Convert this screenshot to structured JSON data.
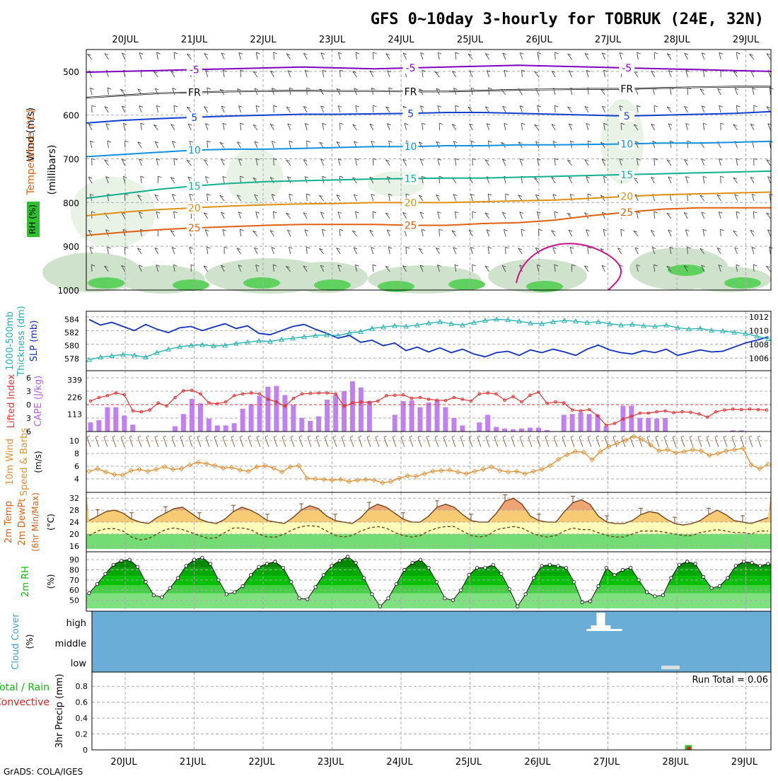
{
  "chart_data": {
    "type": "line",
    "title": "GFS 0~10day 3-hourly for TOBRUK (24E, 32N)",
    "credit": "GrADS: COLA/IGES",
    "x_dates": [
      "20JUL",
      "21JUL",
      "22JUL",
      "23JUL",
      "24JUL",
      "25JUL",
      "26JUL",
      "27JUL",
      "28JUL",
      "29JUL"
    ],
    "colors": {
      "temp": "#e06010",
      "rh_green": "#00c000",
      "slp": "#1030c0",
      "thick": "#20b0b0",
      "cape": "#c080f0",
      "li": "#e03030",
      "wind": "#e09030",
      "cloud": "#6aaed8"
    },
    "panels": [
      {
        "id": "upper_air",
        "ylabel_parts": [
          "RH (%)",
          "Temperature (°C)",
          "Wind (m/s)"
        ],
        "ylabel_colors": [
          "#000",
          "#e06010",
          "#000"
        ],
        "ylabel2": "(millibars)",
        "yticks": [
          500,
          600,
          700,
          800,
          900,
          1000
        ],
        "contours": [
          {
            "label": "-5",
            "color": "#8000c0",
            "values": [
              502,
              500,
              498,
              496,
              494,
              492,
              490,
              492,
              494,
              492,
              490,
              488,
              486,
              488,
              490,
              492,
              494,
              496,
              498,
              500
            ]
          },
          {
            "label": "FR",
            "color": "#000000",
            "values": [
              560,
              555,
              550,
              548,
              546,
              545,
              544,
              545,
              545,
              546,
              546,
              544,
              542,
              541,
              540,
              540,
              538,
              536,
              535,
              535
            ]
          },
          {
            "label": "5",
            "color": "#1040d0",
            "values": [
              618,
              612,
              608,
              605,
              602,
              600,
              598,
              598,
              597,
              596,
              594,
              594,
              596,
              598,
              600,
              602,
              600,
              598,
              596,
              592
            ]
          },
          {
            "label": "10",
            "color": "#1090e0",
            "values": [
              695,
              690,
              685,
              680,
              678,
              678,
              676,
              674,
              672,
              672,
              670,
              670,
              668,
              668,
              667,
              666,
              664,
              664,
              662,
              660
            ]
          },
          {
            "label": "15",
            "color": "#10b090",
            "values": [
              790,
              780,
              770,
              762,
              756,
              752,
              750,
              748,
              746,
              745,
              744,
              744,
              742,
              740,
              738,
              736,
              734,
              732,
              730,
              728
            ]
          },
          {
            "label": "20",
            "color": "#e09010",
            "values": [
              830,
              822,
              816,
              812,
              808,
              805,
              803,
              802,
              800,
              800,
              800,
              798,
              796,
              794,
              790,
              786,
              782,
              780,
              778,
              776
            ]
          },
          {
            "label": "25",
            "color": "#e06010",
            "values": [
              875,
              868,
              862,
              858,
              855,
              852,
              850,
              850,
              850,
              852,
              852,
              848,
              846,
              840,
              830,
              822,
              815,
              812,
              812,
              812
            ]
          }
        ]
      },
      {
        "id": "slp_thickness",
        "ylabel_left": "1000-500mb Thickness (dm)",
        "ylabel_right": "SLP (mb)",
        "thick_ticks": [
          578,
          580,
          582,
          584
        ],
        "slp_ticks": [
          1006,
          1008,
          1010,
          1012
        ],
        "slp": [
          1011.6,
          1010.8,
          1011.2,
          1010.6,
          1010.0,
          1010.9,
          1010.2,
          1009.7,
          1010.4,
          1010.6,
          1010.0,
          1010.5,
          1011.0,
          1010.3,
          1010.7,
          1009.6,
          1009.4,
          1010.0,
          1010.6,
          1010.9,
          1010.2,
          1009.6,
          1008.9,
          1009.3,
          1008.3,
          1008.6,
          1007.8,
          1008.2,
          1007.1,
          1007.6,
          1006.9,
          1007.5,
          1006.8,
          1007.3,
          1006.6,
          1006.2,
          1006.8,
          1007.0,
          1006.4,
          1007.2,
          1006.8,
          1007.3,
          1006.9,
          1006.4,
          1007.3,
          1007.9,
          1007.2,
          1006.8,
          1006.6,
          1007.1,
          1006.8,
          1007.3,
          1006.4,
          1006.8,
          1007.2,
          1006.9,
          1007.0,
          1007.6,
          1008.2,
          1008.6,
          1009.1
        ],
        "thickness": [
          577.8,
          578.2,
          578.4,
          578.6,
          578.5,
          578.2,
          578.9,
          579.4,
          579.8,
          580.0,
          580.1,
          579.9,
          580.0,
          580.3,
          580.5,
          580.7,
          580.6,
          580.9,
          581.1,
          581.3,
          581.5,
          581.6,
          581.5,
          581.9,
          582.1,
          582.6,
          582.8,
          583.0,
          582.9,
          583.1,
          583.4,
          583.6,
          583.3,
          583.1,
          583.5,
          583.8,
          584.0,
          583.9,
          583.7,
          583.4,
          583.3,
          583.6,
          583.8,
          583.7,
          583.5,
          583.6,
          583.3,
          583.1,
          583.2,
          583.0,
          582.9,
          583.1,
          582.7,
          582.5,
          582.6,
          582.3,
          582.2,
          582.0,
          581.8,
          581.4,
          581.0
        ]
      },
      {
        "id": "cape_li",
        "ylabel_left": "Lifted Index",
        "ylabel_right": "CAPE (J/kg)",
        "li_ticks": [
          -6,
          -3,
          0,
          3,
          6
        ],
        "cape_ticks": [
          113,
          226,
          339
        ],
        "cape": [
          60,
          75,
          160,
          160,
          105,
          45,
          0,
          0,
          0,
          0,
          35,
          115,
          215,
          185,
          85,
          40,
          40,
          55,
          150,
          180,
          235,
          295,
          300,
          240,
          175,
          90,
          70,
          100,
          210,
          240,
          265,
          330,
          290,
          200,
          0,
          0,
          110,
          200,
          205,
          160,
          190,
          205,
          160,
          90,
          40,
          0,
          60,
          110,
          30,
          20,
          15,
          20,
          25,
          25,
          10,
          0,
          110,
          115,
          125,
          115,
          110,
          35,
          0,
          170,
          170,
          90,
          90,
          85,
          90,
          0,
          0,
          0,
          0,
          0,
          0,
          0,
          8,
          8,
          0,
          0,
          0
        ],
        "li": [
          -0.8,
          -1.6,
          -2.0,
          -2.6,
          -2.2,
          1.4,
          1.6,
          1.2,
          -0.4,
          0.3,
          -1.6,
          -3.1,
          -3.2,
          -2.4,
          -0.4,
          -0.2,
          -0.6,
          -2.0,
          -2.4,
          -2.6,
          -2.4,
          -1.2,
          -0.6,
          0.4,
          -1.4,
          -2.4,
          -2.5,
          -2.6,
          -2.6,
          -2.4,
          0.4,
          -0.4,
          -0.6,
          -0.5,
          -0.8,
          -2.0,
          -2.1,
          -2.2,
          -1.4,
          -1.6,
          -1.2,
          -1.0,
          -0.9,
          -1.6,
          -1.2,
          -0.8,
          -2.4,
          -2.6,
          -2.4,
          -1.0,
          -1.8,
          -0.6,
          -2.1,
          -2.8,
          -0.3,
          -0.6,
          -0.4,
          1.2,
          1.4,
          1.1,
          2.5,
          4.6,
          4.2,
          3.2,
          2.6,
          1.9,
          1.9,
          1.6,
          1.4,
          1.8,
          1.6,
          1.7,
          2.1,
          2.8,
          1.6,
          1.2,
          1.0,
          1.1,
          1.0,
          1.1,
          1.2
        ]
      },
      {
        "id": "wind",
        "ylabel_left": "10m Wind",
        "ylabel_left2": "Speed & Barbs",
        "ylabel_right": "(m/s)",
        "yticks": [
          4,
          6,
          8,
          10
        ],
        "speed": [
          5.2,
          5.6,
          5.1,
          4.7,
          4.6,
          5.3,
          5.5,
          5.2,
          5.5,
          5.9,
          5.5,
          5.6,
          6.2,
          6.6,
          6.4,
          6.1,
          5.7,
          5.8,
          5.4,
          5.2,
          5.9,
          6.1,
          5.7,
          5.1,
          5.9,
          6.1,
          4.1,
          4.0,
          3.9,
          3.8,
          3.9,
          3.6,
          3.8,
          3.9,
          3.8,
          3.4,
          3.6,
          4.1,
          4.5,
          4.4,
          4.8,
          5.2,
          5.3,
          5.4,
          5.1,
          4.8,
          5.2,
          5.5,
          5.9,
          5.3,
          5.1,
          5.2,
          4.8,
          5.2,
          5.5,
          6.1,
          7.1,
          7.8,
          8.3,
          8.2,
          7.0,
          8.3,
          9.1,
          9.6,
          10.1,
          10.7,
          10.2,
          9.3,
          8.4,
          8.6,
          8.1,
          8.3,
          8.6,
          8.4,
          7.7,
          8.0,
          8.4,
          8.6,
          8.8,
          6.2,
          5.6,
          6.3
        ]
      },
      {
        "id": "temp",
        "ylabel_left": "2m Temp",
        "ylabel_left2": "2m DewPt",
        "ylabel_left3": "(6hr Min/Max)",
        "ylabel_right": "(°C)",
        "yticks": [
          16,
          20,
          24,
          28,
          32
        ],
        "temp": [
          24.5,
          26.0,
          27.5,
          28.0,
          27.0,
          25.0,
          24.0,
          23.5,
          25.5,
          27.0,
          28.5,
          29.0,
          27.0,
          25.0,
          24.0,
          23.5,
          25.0,
          27.5,
          29.0,
          28.0,
          26.5,
          24.5,
          24.0,
          23.5,
          25.5,
          28.0,
          29.5,
          28.5,
          26.0,
          24.5,
          24.0,
          23.5,
          25.5,
          28.5,
          30.0,
          29.0,
          27.0,
          25.0,
          24.0,
          24.0,
          26.0,
          29.0,
          30.0,
          29.0,
          26.5,
          24.5,
          24.0,
          24.0,
          27.0,
          31.0,
          32.0,
          30.0,
          26.0,
          24.5,
          24.0,
          24.0,
          27.5,
          30.5,
          31.5,
          30.0,
          26.0,
          24.0,
          23.5,
          23.5,
          24.5,
          26.5,
          27.5,
          27.0,
          25.0,
          23.5,
          23.0,
          23.5,
          24.5,
          26.5,
          28.0,
          26.5,
          24.5,
          24.0,
          23.5,
          24.5,
          25.5
        ],
        "dewpt": [
          19.5,
          21.0,
          21.8,
          21.8,
          21.0,
          19.0,
          18.0,
          18.5,
          20.0,
          21.5,
          22.0,
          21.5,
          20.5,
          19.5,
          18.5,
          18.8,
          20.5,
          22.0,
          22.0,
          21.5,
          20.0,
          19.0,
          19.0,
          20.0,
          21.5,
          22.5,
          22.8,
          22.5,
          21.0,
          19.5,
          19.0,
          19.5,
          21.0,
          22.0,
          22.5,
          22.0,
          20.5,
          19.5,
          19.0,
          19.5,
          21.0,
          22.0,
          22.5,
          22.5,
          21.0,
          19.5,
          19.0,
          19.5,
          21.5,
          22.0,
          22.5,
          22.0,
          20.5,
          19.5,
          19.0,
          19.5,
          21.0,
          22.0,
          21.5,
          21.5,
          20.5,
          19.5,
          19.0,
          19.0,
          20.0,
          21.0,
          21.0,
          21.0,
          20.5,
          20.0,
          19.5,
          19.5,
          20.5,
          21.0,
          21.5,
          21.0,
          20.5,
          20.5,
          20.0,
          21.0,
          21.0
        ]
      },
      {
        "id": "rh",
        "ylabel_left": "2m RH",
        "ylabel_right": "(%)",
        "yticks": [
          50,
          60,
          70,
          80,
          90
        ],
        "rh": [
          57,
          66,
          76,
          85,
          89,
          90,
          83,
          68,
          55,
          53,
          62,
          72,
          84,
          90,
          92,
          86,
          70,
          56,
          58,
          64,
          75,
          83,
          86,
          88,
          82,
          68,
          52,
          51,
          63,
          75,
          84,
          89,
          93,
          87,
          72,
          56,
          44,
          52,
          66,
          80,
          87,
          90,
          82,
          68,
          52,
          50,
          60,
          75,
          82,
          82,
          85,
          76,
          61,
          44,
          56,
          72,
          84,
          85,
          84,
          82,
          68,
          48,
          49,
          64,
          82,
          75,
          80,
          82,
          70,
          58,
          54,
          55,
          72,
          85,
          88,
          86,
          73,
          62,
          64,
          72,
          84,
          88,
          87,
          84,
          86
        ]
      },
      {
        "id": "cloud",
        "ylabel_left": "Cloud Cover",
        "ylabel_right": "(%)",
        "levels": [
          "high",
          "middle",
          "low"
        ],
        "high_blocks": [
          {
            "x": 27.0,
            "value": 40
          }
        ],
        "low_blocks": [
          {
            "x": 28.0,
            "value": 12
          }
        ]
      },
      {
        "id": "precip",
        "ylabel_left": "Total / Rain",
        "ylabel_left2": "Convective",
        "ylabel_right": "3hr Precip (mm)",
        "yticks": [
          0,
          0.2,
          0.4,
          0.6,
          0.8
        ],
        "run_total": "Run Total = 0.06",
        "precip": [
          {
            "x": 28.25,
            "total": 0.06,
            "conv": 0.04
          }
        ]
      }
    ]
  }
}
